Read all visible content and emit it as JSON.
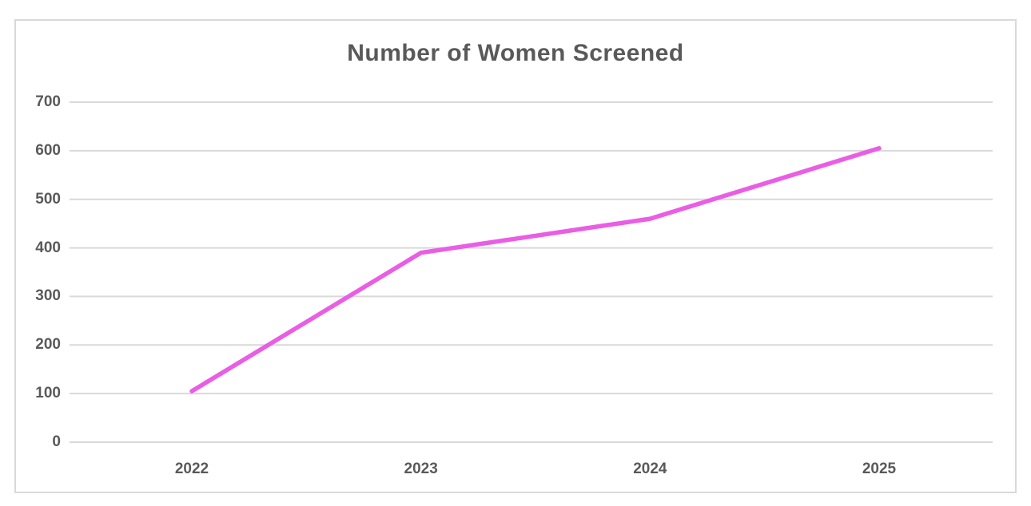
{
  "chart": {
    "colors": {
      "line": "#E95EE4",
      "grid": "#D9D9D9",
      "frame": "#D9D9D9",
      "text": "#595959",
      "background": "#ffffff"
    }
  },
  "chart_data": {
    "type": "line",
    "title": "Number of Women Screened",
    "categories": [
      "2022",
      "2023",
      "2024",
      "2025"
    ],
    "series": [
      {
        "name": "Number of Women Screened",
        "values": [
          105,
          390,
          460,
          605
        ]
      }
    ],
    "xlabel": "",
    "ylabel": "",
    "ylim": [
      0,
      700
    ],
    "yticks": [
      0,
      100,
      200,
      300,
      400,
      500,
      600,
      700
    ],
    "grid": true,
    "legend": false
  }
}
